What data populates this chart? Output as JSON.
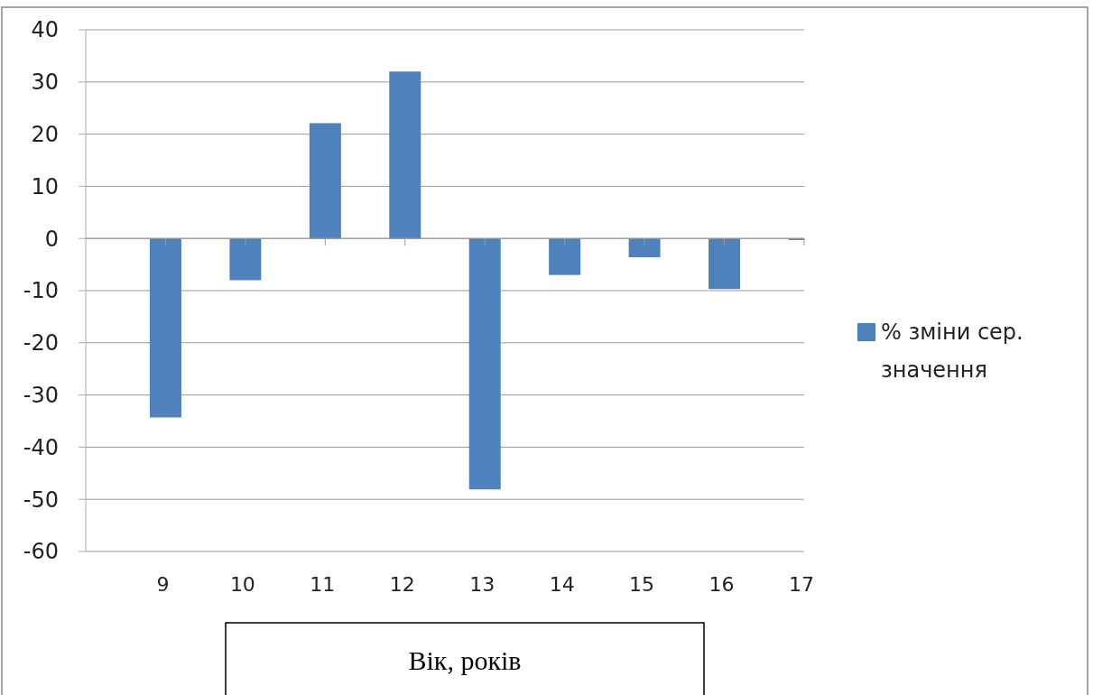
{
  "chart_data": {
    "type": "bar",
    "xlabel": "Вік, років",
    "categories": [
      "9",
      "10",
      "11",
      "12",
      "13",
      "14",
      "15",
      "16",
      "17"
    ],
    "series": [
      {
        "name": "% зміни сер. значення",
        "color": "#4f81bd",
        "values": [
          -34.3,
          -8,
          22.1,
          32,
          -48.1,
          -7,
          -3.6,
          -9.7,
          -0.3
        ]
      }
    ],
    "ylim": [
      -60,
      40
    ],
    "yticks": [
      -60,
      -50,
      -40,
      -30,
      -20,
      -10,
      0,
      10,
      20,
      30,
      40
    ],
    "grid": "y",
    "legend": "right"
  }
}
